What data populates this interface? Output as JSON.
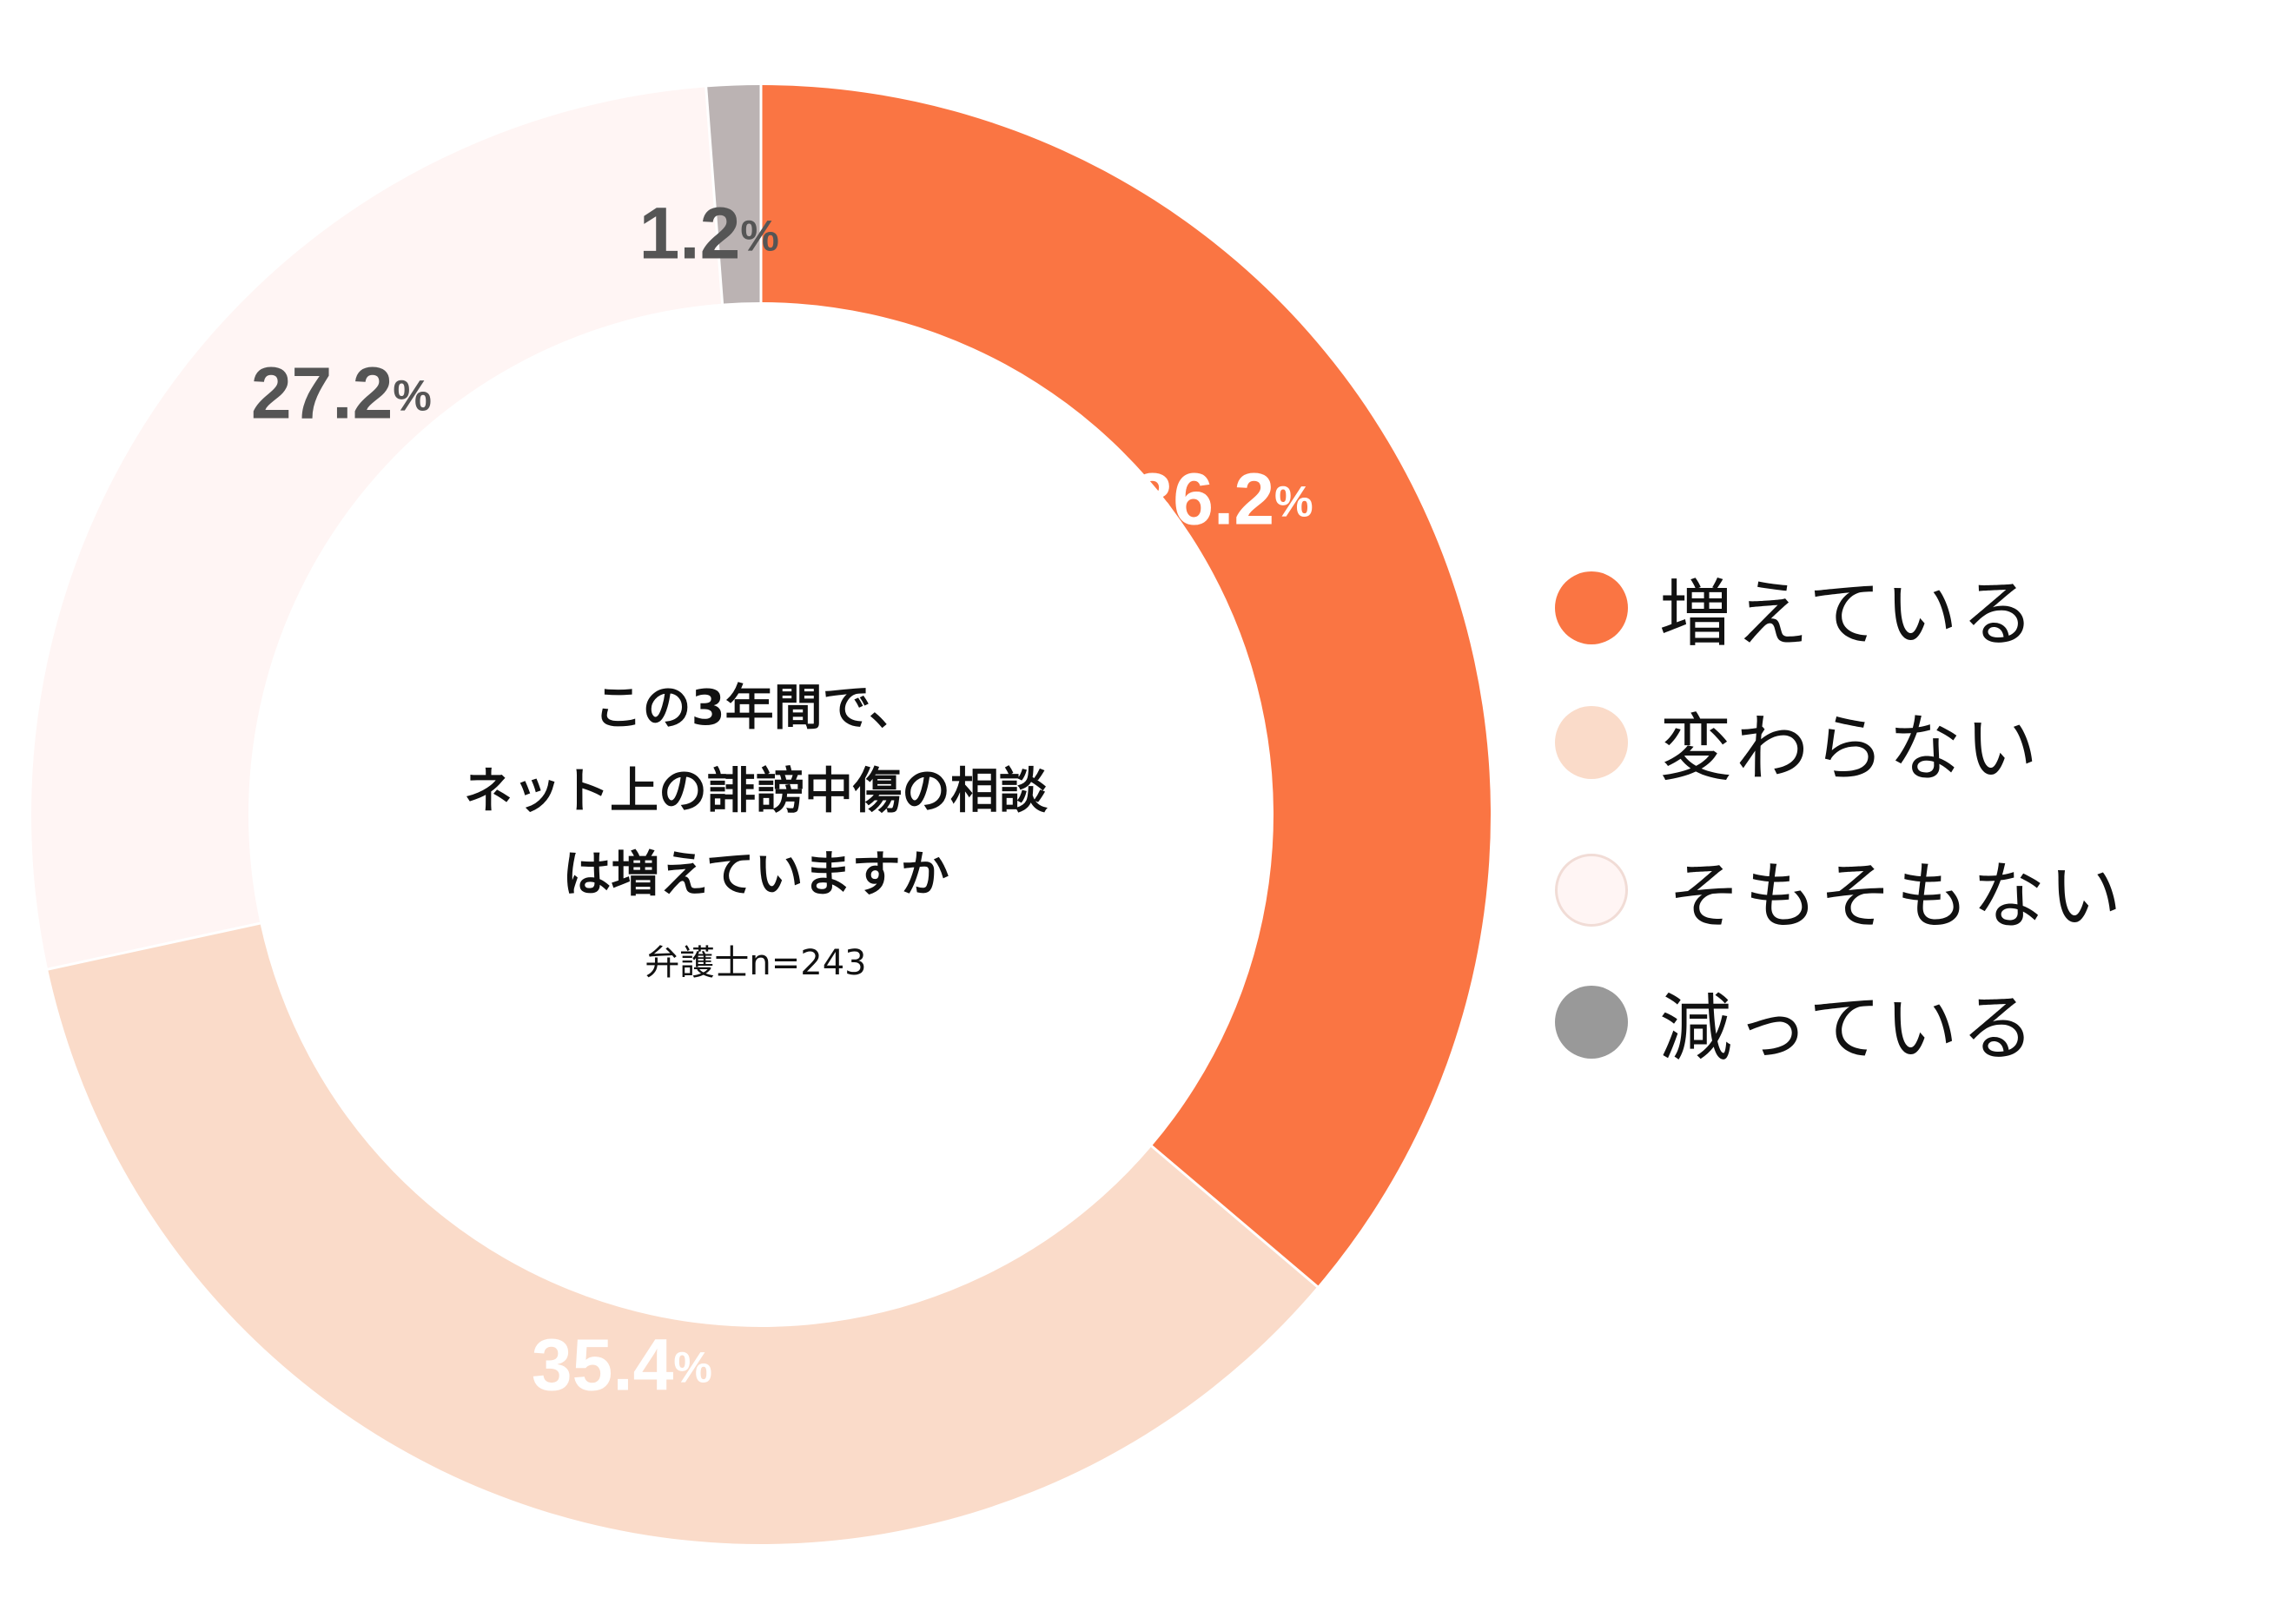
{
  "chart_data": {
    "type": "pie",
    "donut": true,
    "title_lines": [
      "この3年間で、",
      "ネット上の誹謗中傷の相談",
      "は増えていますか"
    ],
    "note": "弁護士n=243",
    "categories": [
      "増えている",
      "変わらない",
      "そもそもない",
      "減っている"
    ],
    "values": [
      36.2,
      35.4,
      27.2,
      1.2
    ],
    "value_labels": [
      "36.2",
      "35.4",
      "27.2",
      "1.2"
    ],
    "unit": "%",
    "colors": [
      "#FA7543",
      "#FADBC9",
      "#FFF5F4",
      "#BBB3B3"
    ],
    "legend_colors": [
      "#FA7543",
      "#FADBC9",
      "#FFF5F4",
      "#999999"
    ],
    "label_colors": [
      "#FFFFFF",
      "#FFFFFF",
      "#555555",
      "#555555"
    ],
    "start_angle_deg": 0,
    "direction": "clockwise",
    "legend_position": "right"
  }
}
